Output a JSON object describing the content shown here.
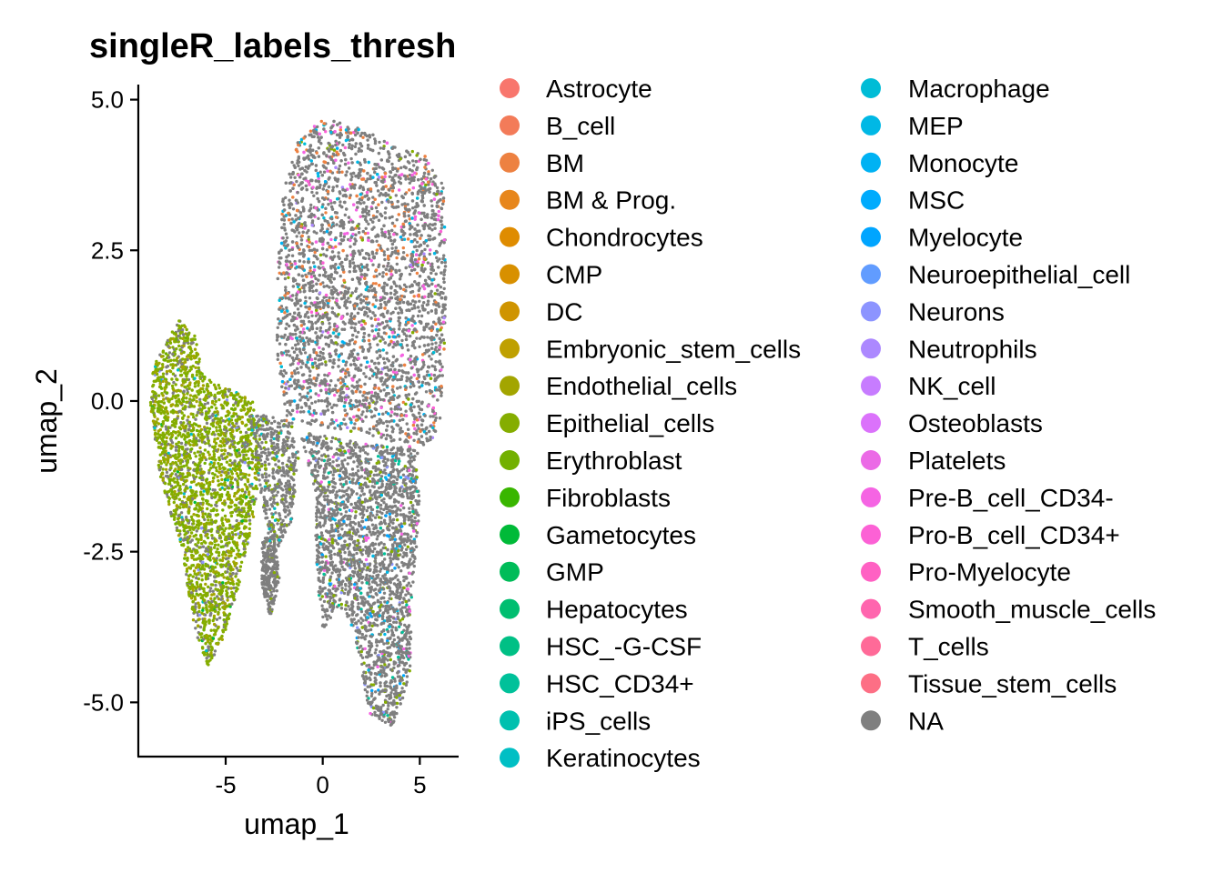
{
  "chart_data": {
    "type": "scatter",
    "title": "singleR_labels_thresh",
    "xlabel": "umap_1",
    "ylabel": "umap_2",
    "xlim": [
      -9.5,
      7
    ],
    "ylim": [
      -5.9,
      5.25
    ],
    "xticks": [
      {
        "value": -5,
        "label": "-5"
      },
      {
        "value": 0,
        "label": "0"
      },
      {
        "value": 5,
        "label": "5"
      }
    ],
    "yticks": [
      {
        "value": 5.0,
        "label": "5.0"
      },
      {
        "value": 2.5,
        "label": "2.5"
      },
      {
        "value": 0.0,
        "label": "0.0"
      },
      {
        "value": -2.5,
        "label": "-2.5"
      },
      {
        "value": -5.0,
        "label": "-5.0"
      }
    ],
    "grid": false,
    "legend_position": "right",
    "legend": [
      {
        "label": "Astrocyte",
        "color": "#F8766D"
      },
      {
        "label": "B_cell",
        "color": "#F37B59"
      },
      {
        "label": "BM",
        "color": "#ED8141"
      },
      {
        "label": "BM & Prog.",
        "color": "#E7861B"
      },
      {
        "label": "Chondrocytes",
        "color": "#DF8C00"
      },
      {
        "label": "CMP",
        "color": "#D89000"
      },
      {
        "label": "DC",
        "color": "#CF9400"
      },
      {
        "label": "Embryonic_stem_cells",
        "color": "#BFA000"
      },
      {
        "label": "Endothelial_cells",
        "color": "#A3A500"
      },
      {
        "label": "Epithelial_cells",
        "color": "#85AD00"
      },
      {
        "label": "Erythroblast",
        "color": "#72B000"
      },
      {
        "label": "Fibroblasts",
        "color": "#39B600"
      },
      {
        "label": "Gametocytes",
        "color": "#00BA38"
      },
      {
        "label": "GMP",
        "color": "#00BC59"
      },
      {
        "label": "Hepatocytes",
        "color": "#00BE70"
      },
      {
        "label": "HSC_-G-CSF",
        "color": "#00C085"
      },
      {
        "label": "HSC_CD34+",
        "color": "#00C19A"
      },
      {
        "label": "iPS_cells",
        "color": "#00C0AF"
      },
      {
        "label": "Keratinocytes",
        "color": "#00BFC4"
      },
      {
        "label": "Macrophage",
        "color": "#00BCD6"
      },
      {
        "label": "MEP",
        "color": "#00B8E5"
      },
      {
        "label": "Monocyte",
        "color": "#00B2F3"
      },
      {
        "label": "MSC",
        "color": "#00ABFD"
      },
      {
        "label": "Myelocyte",
        "color": "#00A5FF"
      },
      {
        "label": "Neuroepithelial_cell",
        "color": "#619CFF"
      },
      {
        "label": "Neurons",
        "color": "#8C94FF"
      },
      {
        "label": "Neutrophils",
        "color": "#AC88FF"
      },
      {
        "label": "NK_cell",
        "color": "#C77CFF"
      },
      {
        "label": "Osteoblasts",
        "color": "#DB72FB"
      },
      {
        "label": "Platelets",
        "color": "#EB6AE6"
      },
      {
        "label": "Pre-B_cell_CD34-",
        "color": "#F564E3"
      },
      {
        "label": "Pro-B_cell_CD34+",
        "color": "#FC61D5"
      },
      {
        "label": "Pro-Myelocyte",
        "color": "#FF61C3"
      },
      {
        "label": "Smooth_muscle_cells",
        "color": "#FF65AE"
      },
      {
        "label": "T_cells",
        "color": "#FF6A98"
      },
      {
        "label": "Tissue_stem_cells",
        "color": "#FD6F85"
      },
      {
        "label": "NA",
        "color": "#7F7F7F"
      }
    ],
    "clusters": [
      {
        "region": "left lobe",
        "x_range": [
          -9,
          -3
        ],
        "y_range": [
          -4.4,
          1.35
        ],
        "dominant_label": "Epithelial_cells"
      },
      {
        "region": "upper right body",
        "x_range": [
          -2,
          6.5
        ],
        "y_range": [
          -1,
          4.7
        ],
        "dominant_label": "NA",
        "secondary_labels": [
          "BM",
          "Pre-B_cell_CD34-",
          "MEP"
        ]
      },
      {
        "region": "lower right tail",
        "x_range": [
          0.5,
          5
        ],
        "y_range": [
          -5.4,
          -1
        ],
        "dominant_label": "NA"
      }
    ]
  }
}
